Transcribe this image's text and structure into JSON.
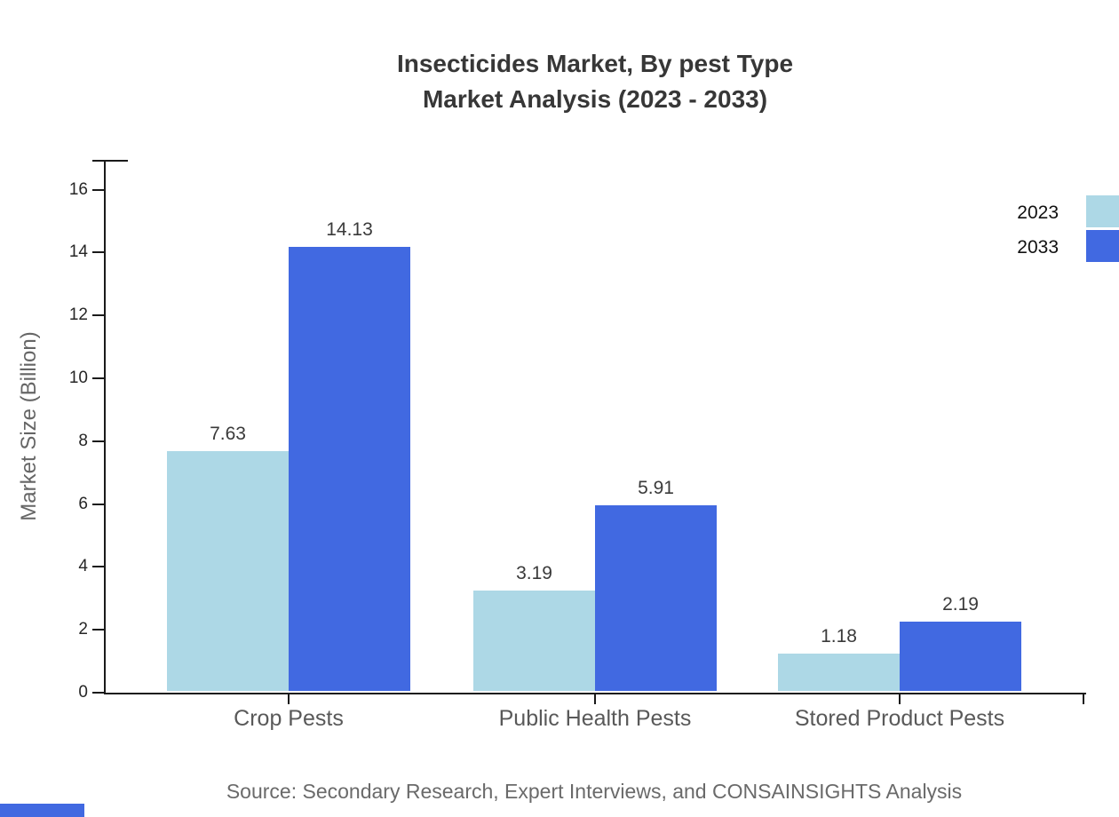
{
  "title": {
    "line1": "Insecticides Market, By pest Type",
    "line2": "Market Analysis (2023 - 2033)"
  },
  "axes": {
    "y_label": "Market Size (Billion)",
    "y_ticks": [
      "0",
      "2",
      "4",
      "6",
      "8",
      "10",
      "12",
      "14",
      "16"
    ]
  },
  "legend": [
    {
      "label": "2023",
      "color": "#ADD8E6"
    },
    {
      "label": "2033",
      "color": "#4169E1"
    }
  ],
  "source_note": "Source: Secondary Research, Expert Interviews, and CONSAINSIGHTS Analysis",
  "footer_mark_color": "#4169E1",
  "chart_data": {
    "type": "bar",
    "title": "Insecticides Market, By pest Type — Market Analysis (2023 - 2033)",
    "categories": [
      "Crop Pests",
      "Public Health Pests",
      "Stored Product Pests"
    ],
    "series": [
      {
        "name": "2023",
        "color": "#ADD8E6",
        "values": [
          7.63,
          3.19,
          1.18
        ],
        "labels": [
          "7.63",
          "3.19",
          "1.18"
        ]
      },
      {
        "name": "2033",
        "color": "#4169E1",
        "values": [
          14.13,
          5.91,
          2.19
        ],
        "labels": [
          "14.13",
          "5.91",
          "2.19"
        ]
      }
    ],
    "xlabel": "",
    "ylabel": "Market Size (Billion)",
    "ylim": [
      0,
      17
    ],
    "y_tick_step": 2,
    "grid": false,
    "legend_position": "top-right",
    "bar_value_labels": true
  }
}
